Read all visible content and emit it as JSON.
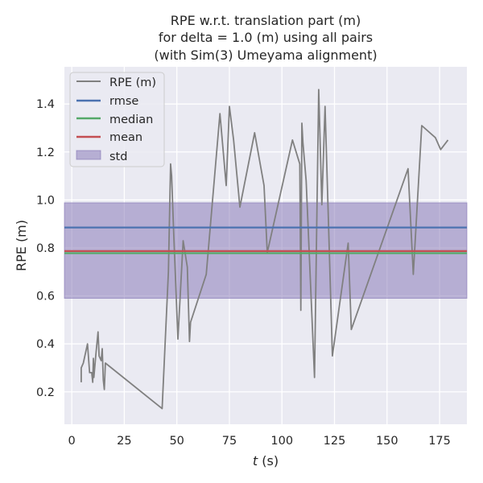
{
  "chart_data": {
    "type": "line",
    "title_lines": [
      "RPE w.r.t. translation part (m)",
      "for delta = 1.0 (m) using all pairs",
      "(with Sim(3) Umeyama alignment)"
    ],
    "xlabel_var": "t",
    "xlabel_unit": " (s)",
    "ylabel": "RPE (m)",
    "xlim": [
      -3.5,
      188
    ],
    "ylim": [
      0.065,
      1.555
    ],
    "xticks": [
      0,
      25,
      50,
      75,
      100,
      125,
      150,
      175
    ],
    "yticks": [
      0.2,
      0.4,
      0.6,
      0.8,
      1.0,
      1.2,
      1.4
    ],
    "ytick_labels": [
      "0.2",
      "0.4",
      "0.6",
      "0.8",
      "1.0",
      "1.2",
      "1.4"
    ],
    "grid": true,
    "legend_position": "top-left",
    "series": {
      "name": "RPE (m)",
      "color": "#808080",
      "x": [
        4.5,
        4.5,
        5.5,
        7.0,
        7.5,
        8.5,
        9.5,
        10.0,
        10.3,
        10.5,
        11.5,
        12.5,
        13.0,
        14.0,
        14.5,
        15.0,
        15.5,
        16.0,
        43.0,
        46.0,
        47.0,
        47.5,
        48.5,
        50.5,
        53.0,
        55.0,
        56.0,
        56.5,
        64.0,
        70.5,
        73.5,
        75.0,
        77.0,
        80.0,
        87.0,
        91.5,
        93.0,
        105.0,
        108.5,
        109.0,
        109.5,
        110.0,
        111.5,
        115.5,
        117.5,
        119.0,
        120.5,
        124.0,
        131.5,
        133.0,
        160.0,
        162.5,
        166.5,
        173.0,
        175.5,
        179.0
      ],
      "y": [
        0.24,
        0.3,
        0.32,
        0.38,
        0.4,
        0.28,
        0.28,
        0.24,
        0.34,
        0.26,
        0.36,
        0.45,
        0.35,
        0.33,
        0.38,
        0.25,
        0.21,
        0.32,
        0.13,
        0.7,
        1.15,
        1.1,
        0.86,
        0.42,
        0.83,
        0.72,
        0.41,
        0.49,
        0.69,
        1.36,
        1.06,
        1.39,
        1.25,
        0.97,
        1.28,
        1.06,
        0.78,
        1.25,
        1.15,
        0.54,
        1.32,
        1.24,
        1.08,
        0.26,
        1.46,
        0.98,
        1.39,
        0.35,
        0.82,
        0.46,
        1.13,
        0.69,
        1.31,
        1.26,
        1.21,
        1.25
      ]
    },
    "rmse": {
      "name": "rmse",
      "value": 0.885,
      "color": "#4C72B0"
    },
    "median": {
      "name": "median",
      "value": 0.778,
      "color": "#55A868"
    },
    "mean": {
      "name": "mean",
      "value": 0.787,
      "color": "#C44E52"
    },
    "std": {
      "name": "std",
      "lower": 0.59,
      "upper": 0.988,
      "color": "#8172B3"
    },
    "colors": {
      "plot_background": "#EAEAF2",
      "grid": "#FFFFFF",
      "page_background": "#FFFFFF"
    }
  }
}
